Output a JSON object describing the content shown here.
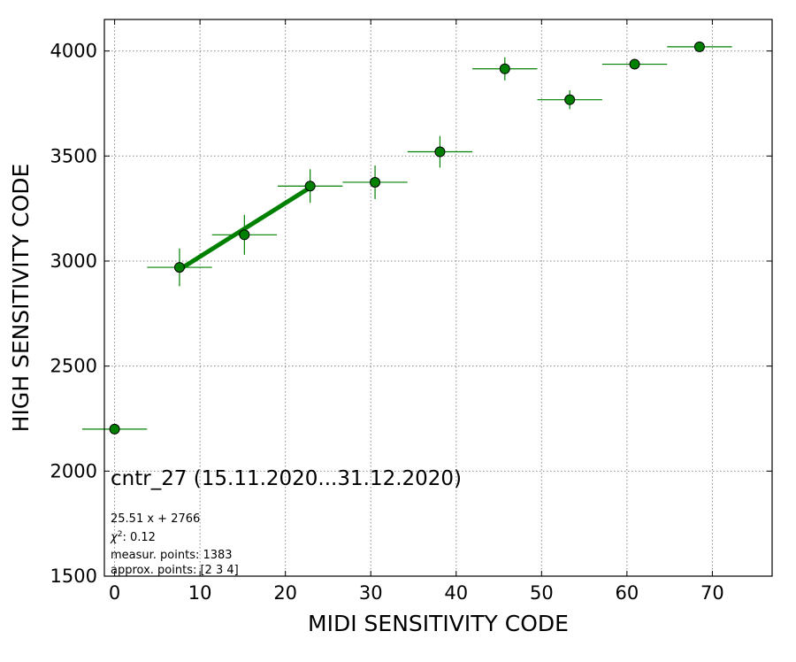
{
  "chart_data": {
    "type": "scatter",
    "xlabel": "MIDI SENSITIVITY CODE",
    "ylabel": "HIGH SENSITIVITY CODE",
    "xlim": [
      -1.2,
      77
    ],
    "ylim": [
      1500,
      4150
    ],
    "xticks": [
      0,
      10,
      20,
      30,
      40,
      50,
      60,
      70
    ],
    "yticks": [
      1500,
      2000,
      2500,
      3000,
      3500,
      4000
    ],
    "xtick_labels": [
      "0",
      "10",
      "20",
      "30",
      "40",
      "50",
      "60",
      "70"
    ],
    "ytick_labels": [
      "1500",
      "2000",
      "2500",
      "3000",
      "3500",
      "4000"
    ],
    "grid": true,
    "marker_color": "#008000",
    "points": [
      {
        "x": 0.0,
        "y": 2200,
        "xerr": 3.8,
        "yerr": 0
      },
      {
        "x": 7.6,
        "y": 2970,
        "xerr": 3.8,
        "yerr": 90
      },
      {
        "x": 15.2,
        "y": 3125,
        "xerr": 3.8,
        "yerr": 95
      },
      {
        "x": 22.9,
        "y": 3357,
        "xerr": 3.8,
        "yerr": 80
      },
      {
        "x": 30.5,
        "y": 3375,
        "xerr": 3.8,
        "yerr": 80
      },
      {
        "x": 38.1,
        "y": 3520,
        "xerr": 3.8,
        "yerr": 75
      },
      {
        "x": 45.7,
        "y": 3915,
        "xerr": 3.8,
        "yerr": 55
      },
      {
        "x": 53.3,
        "y": 3768,
        "xerr": 3.8,
        "yerr": 45
      },
      {
        "x": 60.9,
        "y": 3937,
        "xerr": 3.8,
        "yerr": 25
      },
      {
        "x": 68.5,
        "y": 4020,
        "xerr": 3.8,
        "yerr": 10
      }
    ],
    "fit": {
      "slope": 25.51,
      "intercept": 2766,
      "x_range": [
        7.6,
        22.9
      ],
      "color": "#008000"
    },
    "annotations": {
      "title": "cntr_27 (15.11.2020...31.12.2020)",
      "fit_equation": "25.51 x + 2766",
      "chi2_symbol": "χ",
      "chi2_value": ": 0.12",
      "measur_points": "measur. points: 1383",
      "approx_points": "approx. points: [2 3 4]"
    }
  }
}
